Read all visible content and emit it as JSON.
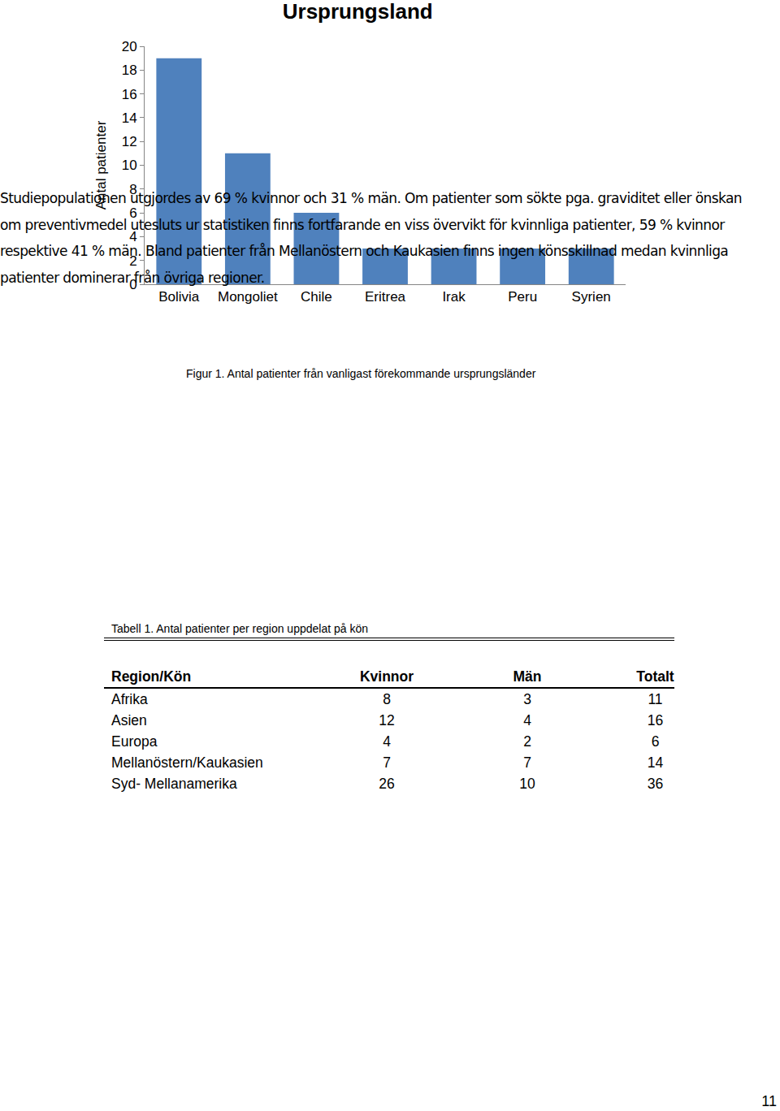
{
  "chart_data": {
    "type": "bar",
    "title": "Ursprungsland",
    "y_label": "Antal patienter",
    "categories": [
      "Bolivia",
      "Mongoliet",
      "Chile",
      "Eritrea",
      "Irak",
      "Peru",
      "Syrien"
    ],
    "values": [
      19,
      11,
      6,
      3,
      3,
      3,
      3
    ],
    "color": "#4f81bd",
    "ylim": [
      0,
      20
    ],
    "yticks": [
      0,
      2,
      4,
      6,
      8,
      10,
      12,
      14,
      16,
      18,
      20
    ],
    "grid": false
  },
  "caption": "Figur 1. Antal patienter från vanligast förekommande ursprungsländer",
  "paragraph": "Studiepopulationen utgjordes av 69 % kvinnor och 31 % män. Om patienter som sökte pga. graviditet eller önskan om preventivmedel utesluts ur statistiken finns fortfarande en viss övervikt för kvinnliga patienter, 59 % kvinnor respektive 41 % män. Bland patienter från Mellanöstern och Kaukasien finns ingen könsskillnad medan kvinnliga patienter dominerar från övriga regioner.",
  "table": {
    "title": "Tabell 1. Antal patienter per region uppdelat på kön",
    "header": [
      "Region/Kön",
      "Kvinnor",
      "Män",
      "Totalt"
    ],
    "rows": [
      [
        "Afrika",
        8,
        3,
        11
      ],
      [
        "Asien",
        12,
        4,
        16
      ],
      [
        "Europa",
        4,
        2,
        6
      ],
      [
        "Mellanöstern/Kaukasien",
        7,
        7,
        14
      ],
      [
        "Syd- Mellanamerika",
        26,
        10,
        36
      ]
    ]
  },
  "page_number": "11"
}
